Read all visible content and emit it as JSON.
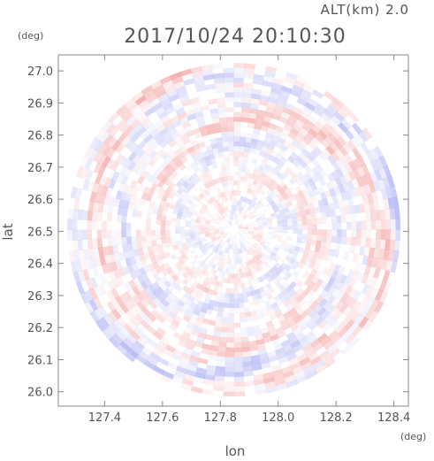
{
  "chart_data": {
    "type": "heatmap",
    "title": "2017/10/24 20:10:30",
    "subtitle": "ALT(km) 2.0",
    "xlabel": "lon",
    "ylabel": "lat",
    "x_unit": "(deg)",
    "y_unit": "(deg)",
    "xlim": [
      127.24,
      128.45
    ],
    "ylim": [
      25.955,
      27.05
    ],
    "x_ticks": [
      "127.4",
      "127.6",
      "127.8",
      "128.0",
      "128.2",
      "128.4"
    ],
    "y_ticks": [
      "26.0",
      "26.1",
      "26.2",
      "26.3",
      "26.4",
      "26.5",
      "26.6",
      "26.7",
      "26.8",
      "26.9",
      "27.0"
    ],
    "center": {
      "lon": 127.847,
      "lat": 26.505
    },
    "radius_deg_lat": 0.52,
    "colors": {
      "positive": "#f4a6a6",
      "negative": "#b4b8f4",
      "neutral": "#ffffff",
      "axis": "#888888",
      "text": "#555555"
    }
  }
}
